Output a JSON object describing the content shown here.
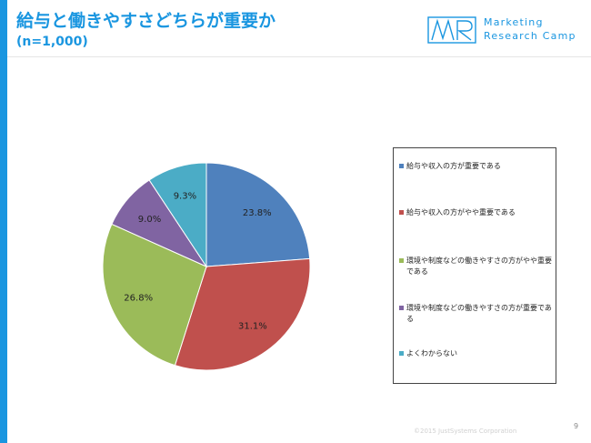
{
  "header": {
    "title": "給与と働きやすさどちらが重要か",
    "subtitle": "(n=1,000)"
  },
  "logo": {
    "mark": "MR",
    "line1": "Marketing",
    "line2": "Research Camp"
  },
  "chart_data": {
    "type": "pie",
    "start": "12 o'clock",
    "direction": "clockwise",
    "legend_position": "right",
    "slices": [
      {
        "label": "給与や収入の方が重要である",
        "value": 23.8,
        "display": "23.8%",
        "color": "#4f81bd"
      },
      {
        "label": "給与や収入の方がやや重要である",
        "value": 31.1,
        "display": "31.1%",
        "color": "#c0504d"
      },
      {
        "label": "環境や制度などの働きやすさの方がやや重要である",
        "value": 26.8,
        "display": "26.8%",
        "color": "#9bbb59"
      },
      {
        "label": "環境や制度などの働きやすさの方が重要である",
        "value": 9.0,
        "display": "9.0%",
        "color": "#8064a2"
      },
      {
        "label": "よくわからない",
        "value": 9.3,
        "display": "9.3%",
        "color": "#4bacc6"
      }
    ]
  },
  "legend": {
    "items": [
      {
        "label": "給与や収入の方が重要である"
      },
      {
        "label": "給与や収入の方がやや重要である"
      },
      {
        "label": "環境や制度などの働きやすさの方がやや重要である"
      },
      {
        "label": "環境や制度などの働きやすさの方が重要である"
      },
      {
        "label": "よくわからない"
      }
    ]
  },
  "footer": {
    "copyright": "©2015 JustSystems Corporation",
    "page_number": "9"
  }
}
